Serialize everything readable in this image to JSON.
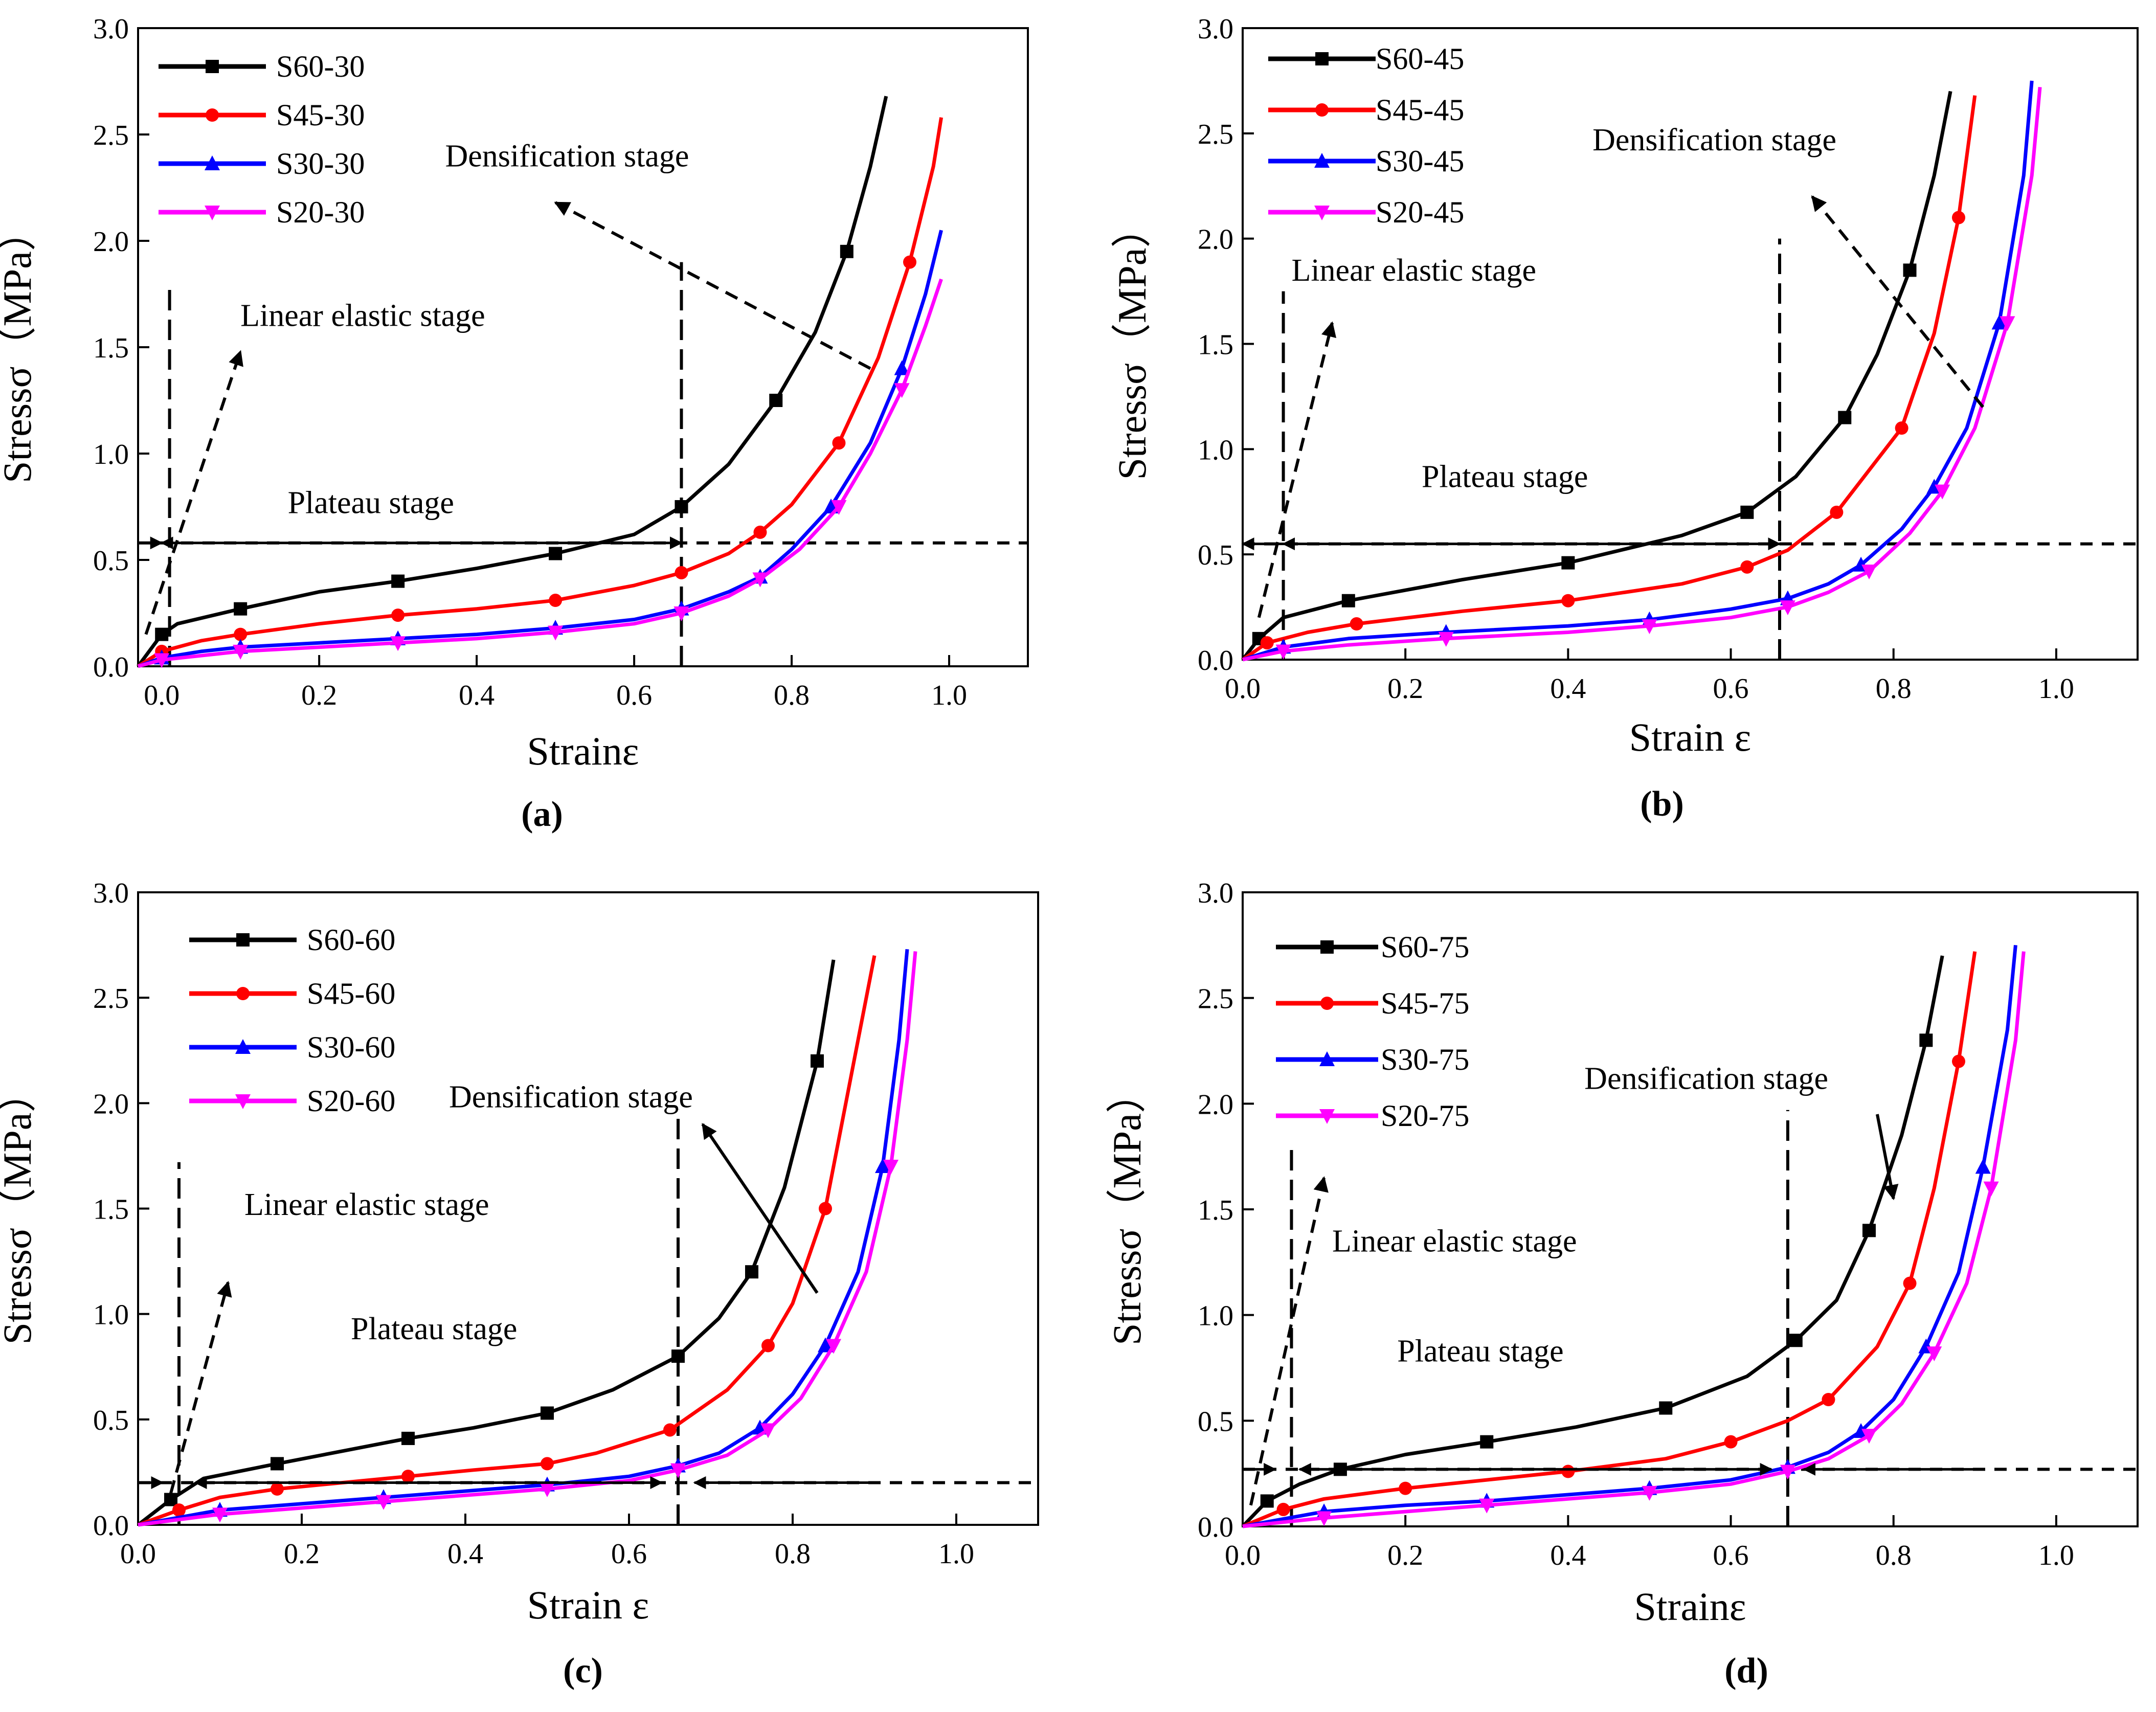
{
  "colors": {
    "S60": "#000000",
    "S45": "#ff0000",
    "S30": "#0000ff",
    "S20": "#ff00ff"
  },
  "chart_data": [
    {
      "type": "line",
      "panel": "a",
      "caption": "(a)",
      "xlabel": "Strainε",
      "ylabel": "Stressσ（MPa）",
      "xlim": [
        -0.03,
        1.1
      ],
      "ylim": [
        0,
        3.0
      ],
      "xticks": [
        "0.0",
        "0.2",
        "0.4",
        "0.6",
        "0.8",
        "1.0"
      ],
      "yticks": [
        "0.0",
        "0.5",
        "1.0",
        "1.5",
        "2.0",
        "2.5",
        "3.0"
      ],
      "legend_position": "top-left",
      "series": [
        {
          "name": "S60-30",
          "marker": "square",
          "x": [
            -0.03,
            0.0,
            0.02,
            0.1,
            0.2,
            0.3,
            0.4,
            0.5,
            0.6,
            0.66,
            0.72,
            0.78,
            0.83,
            0.87,
            0.9,
            0.92
          ],
          "y": [
            0.0,
            0.15,
            0.2,
            0.27,
            0.35,
            0.4,
            0.46,
            0.53,
            0.62,
            0.75,
            0.95,
            1.25,
            1.57,
            1.95,
            2.35,
            2.68
          ]
        },
        {
          "name": "S45-30",
          "marker": "circle",
          "x": [
            -0.03,
            0.0,
            0.05,
            0.1,
            0.2,
            0.3,
            0.4,
            0.5,
            0.6,
            0.66,
            0.72,
            0.76,
            0.8,
            0.86,
            0.91,
            0.95,
            0.98,
            0.99
          ],
          "y": [
            0.0,
            0.07,
            0.12,
            0.15,
            0.2,
            0.24,
            0.27,
            0.31,
            0.38,
            0.44,
            0.53,
            0.63,
            0.76,
            1.05,
            1.45,
            1.9,
            2.35,
            2.58
          ]
        },
        {
          "name": "S30-30",
          "marker": "triangle-up",
          "x": [
            -0.03,
            0.0,
            0.05,
            0.1,
            0.2,
            0.3,
            0.4,
            0.5,
            0.6,
            0.66,
            0.72,
            0.76,
            0.8,
            0.85,
            0.9,
            0.94,
            0.97,
            0.99
          ],
          "y": [
            0.0,
            0.04,
            0.07,
            0.09,
            0.11,
            0.13,
            0.15,
            0.18,
            0.22,
            0.27,
            0.35,
            0.42,
            0.55,
            0.75,
            1.05,
            1.4,
            1.75,
            2.05
          ]
        },
        {
          "name": "S20-30",
          "marker": "triangle-down",
          "x": [
            -0.03,
            0.0,
            0.05,
            0.1,
            0.2,
            0.3,
            0.4,
            0.5,
            0.6,
            0.66,
            0.72,
            0.76,
            0.81,
            0.86,
            0.9,
            0.94,
            0.97,
            0.99
          ],
          "y": [
            0.0,
            0.03,
            0.05,
            0.07,
            0.09,
            0.11,
            0.13,
            0.16,
            0.2,
            0.25,
            0.33,
            0.41,
            0.55,
            0.75,
            1.0,
            1.3,
            1.6,
            1.82
          ]
        }
      ],
      "annotations": [
        {
          "text": "Densification stage",
          "x": 0.36,
          "y": 2.35
        },
        {
          "text": "Linear elastic stage",
          "x": 0.1,
          "y": 1.6
        },
        {
          "text": "Plateau stage",
          "x": 0.16,
          "y": 0.72
        }
      ]
    },
    {
      "type": "line",
      "panel": "b",
      "caption": "(b)",
      "xlabel": "Strain ε",
      "ylabel": "Stressσ（MPa）",
      "xlim": [
        0,
        1.1
      ],
      "ylim": [
        0,
        3.0
      ],
      "xticks": [
        "0.0",
        "0.2",
        "0.4",
        "0.6",
        "0.8",
        "1.0"
      ],
      "yticks": [
        "0.0",
        "0.5",
        "1.0",
        "1.5",
        "2.0",
        "2.5",
        "3.0"
      ],
      "legend_position": "top-left",
      "series": [
        {
          "name": "S60-45",
          "marker": "square",
          "x": [
            0.0,
            0.02,
            0.05,
            0.13,
            0.27,
            0.4,
            0.54,
            0.62,
            0.68,
            0.74,
            0.78,
            0.82,
            0.85,
            0.87
          ],
          "y": [
            0.0,
            0.1,
            0.2,
            0.28,
            0.38,
            0.46,
            0.59,
            0.7,
            0.87,
            1.15,
            1.45,
            1.85,
            2.3,
            2.7
          ]
        },
        {
          "name": "S45-45",
          "marker": "circle",
          "x": [
            0.0,
            0.03,
            0.08,
            0.14,
            0.27,
            0.4,
            0.54,
            0.62,
            0.67,
            0.73,
            0.78,
            0.81,
            0.85,
            0.88,
            0.9
          ],
          "y": [
            0.0,
            0.08,
            0.13,
            0.17,
            0.23,
            0.28,
            0.36,
            0.44,
            0.52,
            0.7,
            0.95,
            1.1,
            1.55,
            2.1,
            2.68
          ]
        },
        {
          "name": "S30-45",
          "marker": "triangle-up",
          "x": [
            0.0,
            0.05,
            0.13,
            0.25,
            0.4,
            0.5,
            0.6,
            0.67,
            0.72,
            0.76,
            0.81,
            0.85,
            0.89,
            0.93,
            0.96,
            0.97
          ],
          "y": [
            0.0,
            0.06,
            0.1,
            0.13,
            0.16,
            0.19,
            0.24,
            0.29,
            0.36,
            0.45,
            0.62,
            0.82,
            1.1,
            1.6,
            2.3,
            2.75
          ]
        },
        {
          "name": "S20-45",
          "marker": "triangle-down",
          "x": [
            0.0,
            0.05,
            0.13,
            0.25,
            0.4,
            0.5,
            0.6,
            0.67,
            0.72,
            0.77,
            0.82,
            0.86,
            0.9,
            0.94,
            0.97,
            0.98
          ],
          "y": [
            0.0,
            0.04,
            0.07,
            0.1,
            0.13,
            0.16,
            0.2,
            0.25,
            0.32,
            0.42,
            0.6,
            0.8,
            1.1,
            1.6,
            2.3,
            2.72
          ]
        }
      ],
      "annotations": [
        {
          "text": "Densification stage",
          "x": 0.43,
          "y": 2.42
        },
        {
          "text": "Linear elastic stage",
          "x": 0.06,
          "y": 1.8
        },
        {
          "text": "Plateau stage",
          "x": 0.22,
          "y": 0.82
        }
      ]
    },
    {
      "type": "line",
      "panel": "c",
      "caption": "(c)",
      "xlabel": "Strain ε",
      "ylabel": "Stressσ（MPa）",
      "xlim": [
        0,
        1.1
      ],
      "ylim": [
        0,
        3.0
      ],
      "xticks": [
        "0.0",
        "0.2",
        "0.4",
        "0.6",
        "0.8",
        "1.0"
      ],
      "yticks": [
        "0.0",
        "0.5",
        "1.0",
        "1.5",
        "2.0",
        "2.5",
        "3.0"
      ],
      "legend_position": "top-left",
      "series": [
        {
          "name": "S60-60",
          "marker": "square",
          "x": [
            0.0,
            0.04,
            0.08,
            0.17,
            0.25,
            0.33,
            0.41,
            0.5,
            0.58,
            0.66,
            0.71,
            0.75,
            0.79,
            0.83,
            0.85
          ],
          "y": [
            0.0,
            0.12,
            0.22,
            0.29,
            0.35,
            0.41,
            0.46,
            0.53,
            0.64,
            0.8,
            0.98,
            1.2,
            1.6,
            2.2,
            2.68
          ]
        },
        {
          "name": "S45-60",
          "marker": "circle",
          "x": [
            0.0,
            0.05,
            0.1,
            0.17,
            0.25,
            0.33,
            0.41,
            0.5,
            0.56,
            0.65,
            0.72,
            0.77,
            0.8,
            0.84,
            0.88,
            0.9
          ],
          "y": [
            0.0,
            0.07,
            0.13,
            0.17,
            0.2,
            0.23,
            0.26,
            0.29,
            0.34,
            0.45,
            0.64,
            0.85,
            1.05,
            1.5,
            2.3,
            2.7
          ]
        },
        {
          "name": "S30-60",
          "marker": "triangle-up",
          "x": [
            0.0,
            0.1,
            0.2,
            0.3,
            0.4,
            0.5,
            0.6,
            0.66,
            0.71,
            0.76,
            0.8,
            0.84,
            0.88,
            0.91,
            0.93,
            0.94
          ],
          "y": [
            0.0,
            0.07,
            0.1,
            0.13,
            0.16,
            0.19,
            0.23,
            0.28,
            0.34,
            0.46,
            0.62,
            0.85,
            1.2,
            1.7,
            2.3,
            2.73
          ]
        },
        {
          "name": "S20-60",
          "marker": "triangle-down",
          "x": [
            0.0,
            0.1,
            0.2,
            0.3,
            0.4,
            0.5,
            0.6,
            0.66,
            0.72,
            0.77,
            0.81,
            0.85,
            0.89,
            0.92,
            0.94,
            0.95
          ],
          "y": [
            0.0,
            0.05,
            0.08,
            0.11,
            0.14,
            0.17,
            0.21,
            0.26,
            0.33,
            0.45,
            0.6,
            0.85,
            1.2,
            1.7,
            2.3,
            2.72
          ]
        }
      ],
      "annotations": [
        {
          "text": "Densification stage",
          "x": 0.38,
          "y": 1.98
        },
        {
          "text": "Linear elastic stage",
          "x": 0.13,
          "y": 1.47
        },
        {
          "text": "Plateau stage",
          "x": 0.26,
          "y": 0.88
        }
      ]
    },
    {
      "type": "line",
      "panel": "d",
      "caption": "(d)",
      "xlabel": "Strainε",
      "ylabel": "Stressσ（MPa）",
      "xlim": [
        0,
        1.1
      ],
      "ylim": [
        0,
        3.0
      ],
      "xticks": [
        "0.0",
        "0.2",
        "0.4",
        "0.6",
        "0.8",
        "1.0"
      ],
      "yticks": [
        "0.0",
        "0.5",
        "1.0",
        "1.5",
        "2.0",
        "2.5",
        "3.0"
      ],
      "legend_position": "top-left",
      "series": [
        {
          "name": "S60-75",
          "marker": "square",
          "x": [
            0.0,
            0.03,
            0.07,
            0.12,
            0.2,
            0.3,
            0.41,
            0.52,
            0.62,
            0.68,
            0.73,
            0.77,
            0.81,
            0.84,
            0.86
          ],
          "y": [
            0.0,
            0.12,
            0.2,
            0.27,
            0.34,
            0.4,
            0.47,
            0.56,
            0.71,
            0.88,
            1.07,
            1.4,
            1.85,
            2.3,
            2.7
          ]
        },
        {
          "name": "S45-75",
          "marker": "circle",
          "x": [
            0.0,
            0.05,
            0.1,
            0.2,
            0.3,
            0.4,
            0.52,
            0.6,
            0.67,
            0.72,
            0.78,
            0.82,
            0.85,
            0.88,
            0.9
          ],
          "y": [
            0.0,
            0.08,
            0.13,
            0.18,
            0.22,
            0.26,
            0.32,
            0.4,
            0.5,
            0.6,
            0.85,
            1.15,
            1.6,
            2.2,
            2.72
          ]
        },
        {
          "name": "S30-75",
          "marker": "triangle-up",
          "x": [
            0.0,
            0.1,
            0.2,
            0.3,
            0.4,
            0.5,
            0.6,
            0.67,
            0.72,
            0.76,
            0.8,
            0.84,
            0.88,
            0.91,
            0.94,
            0.95
          ],
          "y": [
            0.0,
            0.07,
            0.1,
            0.12,
            0.15,
            0.18,
            0.22,
            0.28,
            0.35,
            0.45,
            0.6,
            0.85,
            1.2,
            1.7,
            2.35,
            2.75
          ]
        },
        {
          "name": "S20-75",
          "marker": "triangle-down",
          "x": [
            0.0,
            0.1,
            0.2,
            0.3,
            0.4,
            0.5,
            0.6,
            0.67,
            0.72,
            0.77,
            0.81,
            0.85,
            0.89,
            0.92,
            0.95,
            0.96
          ],
          "y": [
            0.0,
            0.04,
            0.07,
            0.1,
            0.13,
            0.16,
            0.2,
            0.26,
            0.32,
            0.43,
            0.58,
            0.82,
            1.15,
            1.6,
            2.3,
            2.72
          ]
        }
      ],
      "annotations": [
        {
          "text": "Densification stage",
          "x": 0.42,
          "y": 2.07
        },
        {
          "text": "Linear elastic stage",
          "x": 0.11,
          "y": 1.3
        },
        {
          "text": "Plateau stage",
          "x": 0.19,
          "y": 0.78
        }
      ]
    }
  ]
}
